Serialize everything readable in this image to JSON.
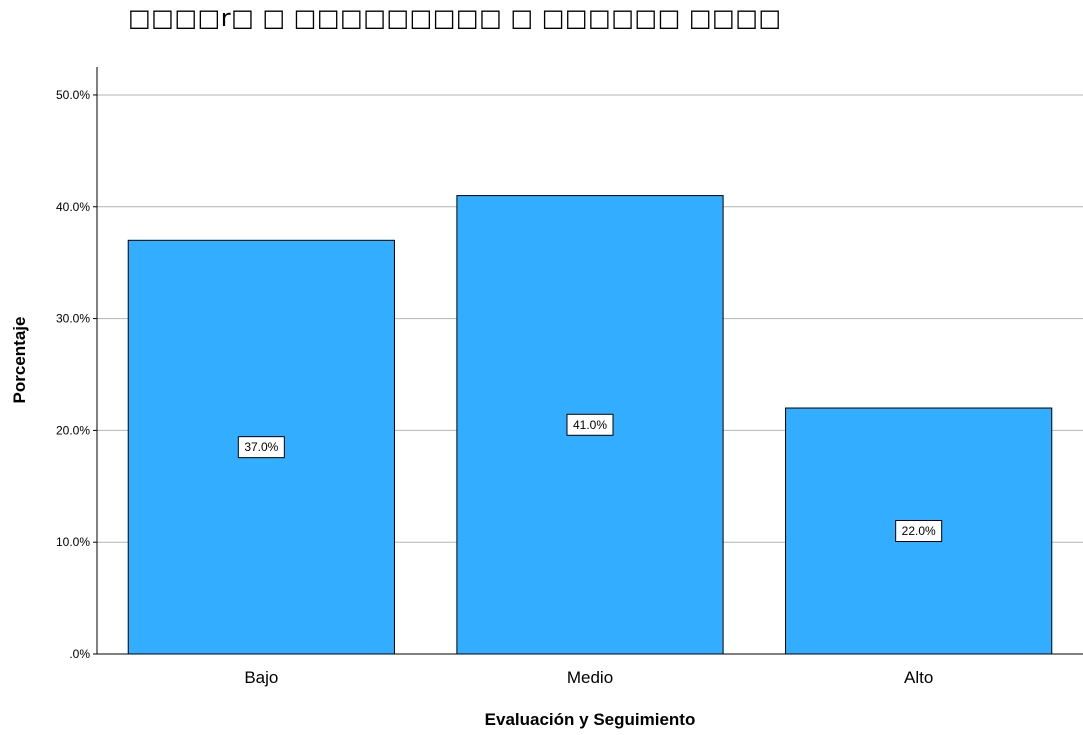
{
  "chart_data": {
    "type": "bar",
    "title": "□□□□r□ □ □□□□□□□□□ □ □□□□□□ □□□□",
    "xlabel": "Evaluación y Seguimiento",
    "ylabel": "Porcentaje",
    "categories": [
      "Bajo",
      "Medio",
      "Alto"
    ],
    "values": [
      37.0,
      41.0,
      22.0
    ],
    "data_labels": [
      "37.0%",
      "41.0%",
      "22.0%"
    ],
    "yticks": [
      ".0%",
      "10.0%",
      "20.0%",
      "30.0%",
      "40.0%",
      "50.0%"
    ],
    "ylim": [
      0,
      52.5
    ],
    "grid": true,
    "bar_color": "#33adff"
  }
}
